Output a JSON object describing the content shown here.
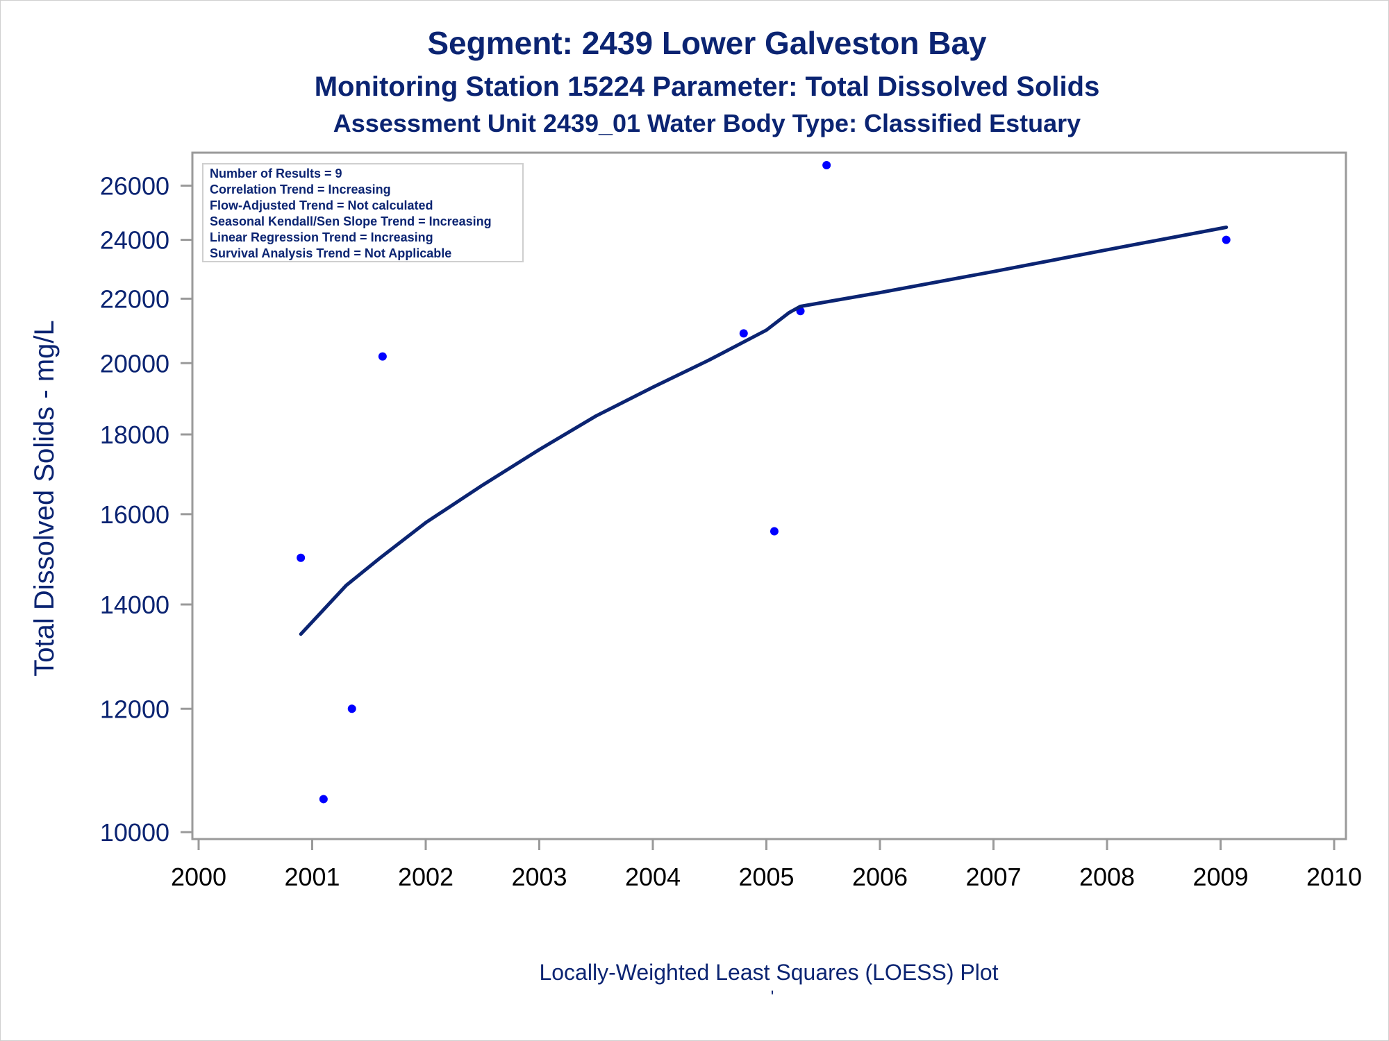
{
  "chart_data": {
    "type": "scatter",
    "title": "Segment: 2439  Lower Galveston Bay",
    "subtitle": "Monitoring Station 15224 Parameter: Total Dissolved Solids",
    "subtitle2": "Assessment Unit 2439_01   Water Body Type: Classified Estuary",
    "xlabel": "Locally-Weighted Least Squares (LOESS) Plot",
    "footnote": "'",
    "ylabel": "Total Dissolved Solids - mg/L",
    "xlim": [
      2000,
      2010
    ],
    "ylim": [
      10000,
      26800
    ],
    "y_scale": "log",
    "x_ticks": [
      "2000",
      "2001",
      "2002",
      "2003",
      "2004",
      "2005",
      "2006",
      "2007",
      "2008",
      "2009",
      "2010"
    ],
    "y_ticks": [
      "10000",
      "12000",
      "14000",
      "16000",
      "18000",
      "20000",
      "22000",
      "24000",
      "26000"
    ],
    "stats_box": [
      "Number of Results = 9",
      "Correlation Trend = Increasing",
      "Flow-Adjusted Trend = Not calculated",
      "Seasonal Kendall/Sen Slope Trend = Increasing",
      "Linear Regression Trend = Increasing",
      "Survival Analysis Trend = Not Applicable"
    ],
    "stats_box_position": "top-left",
    "series": [
      {
        "type": "scatter",
        "color": "#0000ff",
        "points": [
          {
            "x": 2000.9,
            "y": 15000
          },
          {
            "x": 2001.1,
            "y": 10500
          },
          {
            "x": 2001.35,
            "y": 12000
          },
          {
            "x": 2001.62,
            "y": 20200
          },
          {
            "x": 2004.8,
            "y": 20900
          },
          {
            "x": 2005.07,
            "y": 15600
          },
          {
            "x": 2005.3,
            "y": 21600
          },
          {
            "x": 2005.53,
            "y": 26800
          },
          {
            "x": 2009.05,
            "y": 24000
          }
        ]
      },
      {
        "type": "line",
        "color": "#0b2472",
        "points": [
          {
            "x": 2000.9,
            "y": 13400
          },
          {
            "x": 2001.3,
            "y": 14400
          },
          {
            "x": 2001.6,
            "y": 15000
          },
          {
            "x": 2002.0,
            "y": 15800
          },
          {
            "x": 2002.5,
            "y": 16700
          },
          {
            "x": 2003.0,
            "y": 17600
          },
          {
            "x": 2003.5,
            "y": 18500
          },
          {
            "x": 2004.0,
            "y": 19300
          },
          {
            "x": 2004.5,
            "y": 20100
          },
          {
            "x": 2005.0,
            "y": 21000
          },
          {
            "x": 2005.2,
            "y": 21550
          },
          {
            "x": 2005.3,
            "y": 21750
          },
          {
            "x": 2006.0,
            "y": 22200
          },
          {
            "x": 2007.0,
            "y": 22900
          },
          {
            "x": 2008.0,
            "y": 23650
          },
          {
            "x": 2009.05,
            "y": 24450
          }
        ]
      }
    ]
  }
}
